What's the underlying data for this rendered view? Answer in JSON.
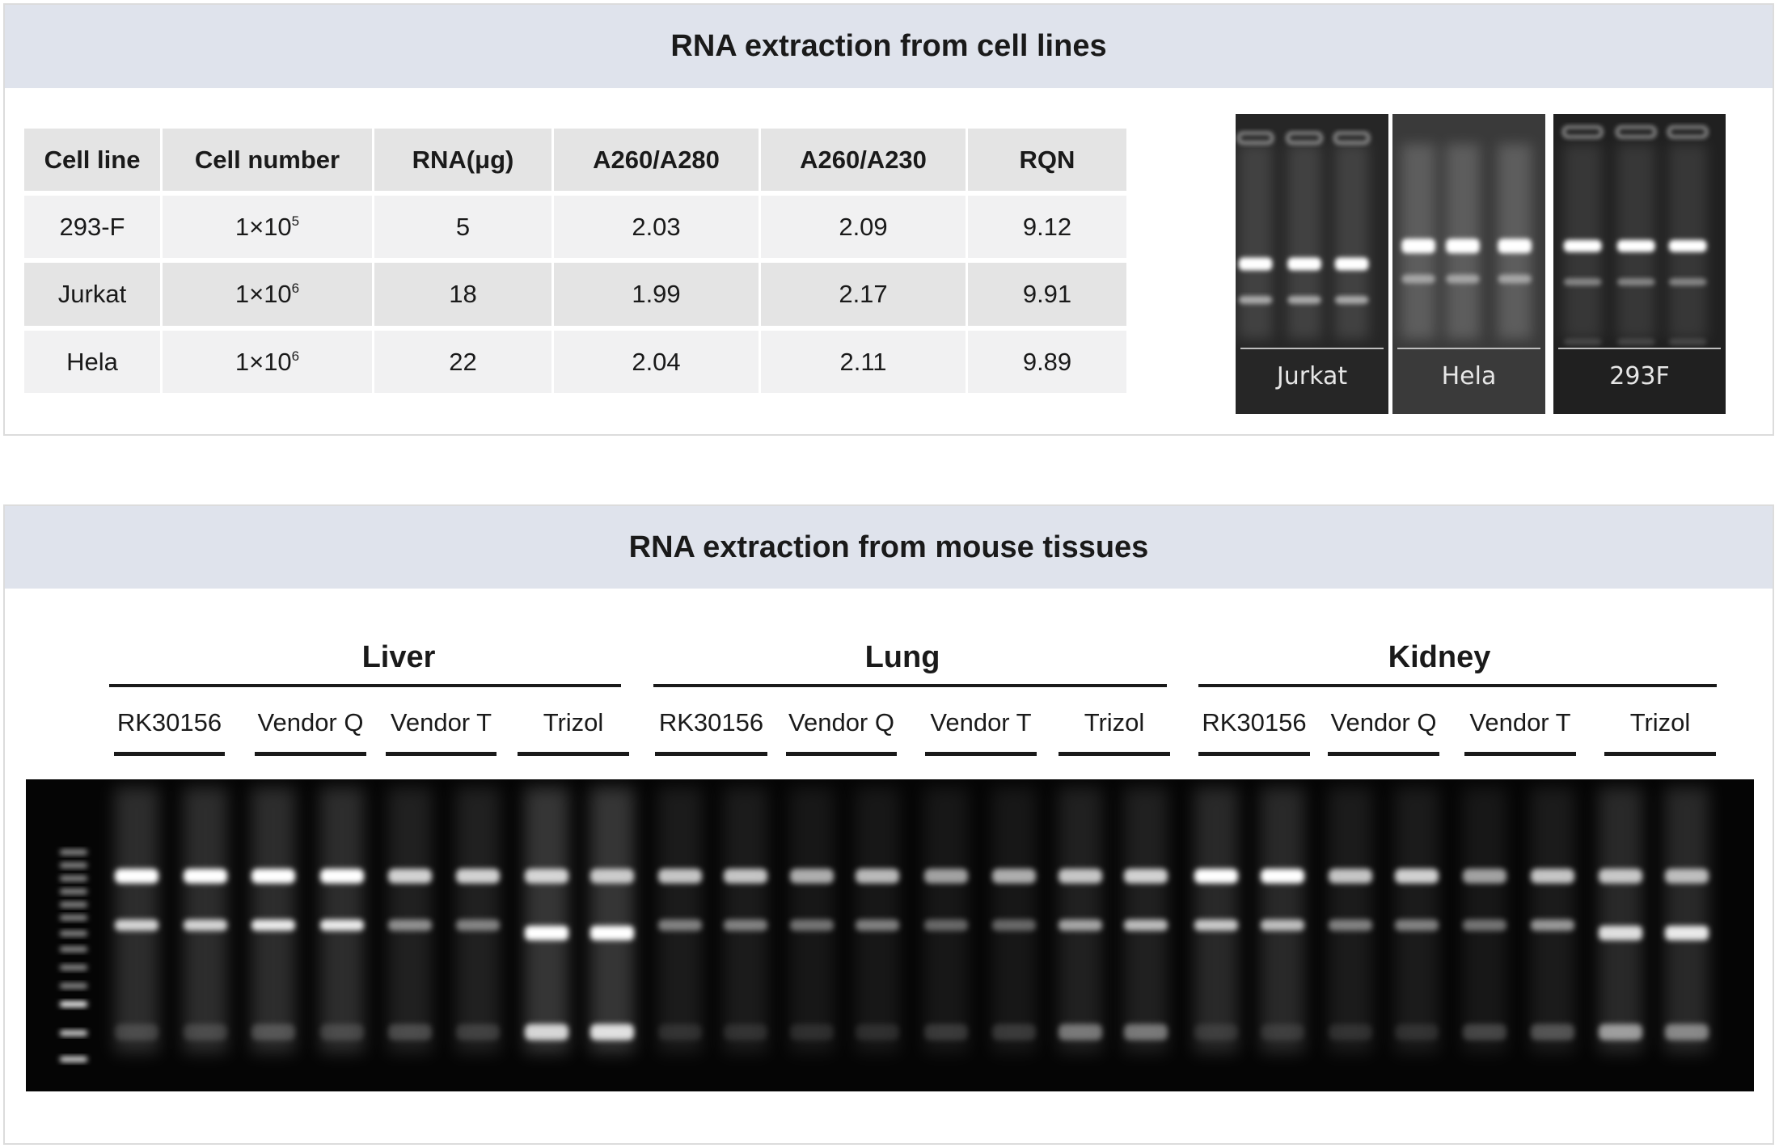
{
  "cell_lines_panel": {
    "title": "RNA extraction from cell lines",
    "table": {
      "headers": [
        "Cell line",
        "Cell number",
        "RNA(μg)",
        "A260/A280",
        "A260/A230",
        "RQN"
      ],
      "rows": [
        {
          "cell_line": "293-F",
          "cell_number_base": "1×10",
          "cell_number_exp": "5",
          "rna": "5",
          "a260_a280": "2.03",
          "a260_a230": "2.09",
          "rqn": "9.12"
        },
        {
          "cell_line": "Jurkat",
          "cell_number_base": "1×10",
          "cell_number_exp": "6",
          "rna": "18",
          "a260_a280": "1.99",
          "a260_a230": "2.17",
          "rqn": "9.91"
        },
        {
          "cell_line": "Hela",
          "cell_number_base": "1×10",
          "cell_number_exp": "6",
          "rna": "22",
          "a260_a280": "2.04",
          "a260_a230": "2.11",
          "rqn": "9.89"
        }
      ]
    },
    "gels": [
      {
        "label": "Jurkat"
      },
      {
        "label": "Hela"
      },
      {
        "label": "293F"
      }
    ]
  },
  "tissues_panel": {
    "title": "RNA extraction from mouse tissues",
    "groups": [
      {
        "label": "Liver",
        "methods": [
          "RK30156",
          "Vendor Q",
          "Vendor T",
          "Trizol"
        ]
      },
      {
        "label": "Lung",
        "methods": [
          "RK30156",
          "Vendor Q",
          "Vendor T",
          "Trizol"
        ]
      },
      {
        "label": "Kidney",
        "methods": [
          "RK30156",
          "Vendor Q",
          "Vendor T",
          "Trizol"
        ]
      }
    ]
  },
  "colors": {
    "header_band": "#dfe3ec",
    "table_header": "#e4e4e4",
    "row_light": "#f1f1f2",
    "row_dark": "#e4e4e4",
    "gel_bg": "#050505"
  }
}
